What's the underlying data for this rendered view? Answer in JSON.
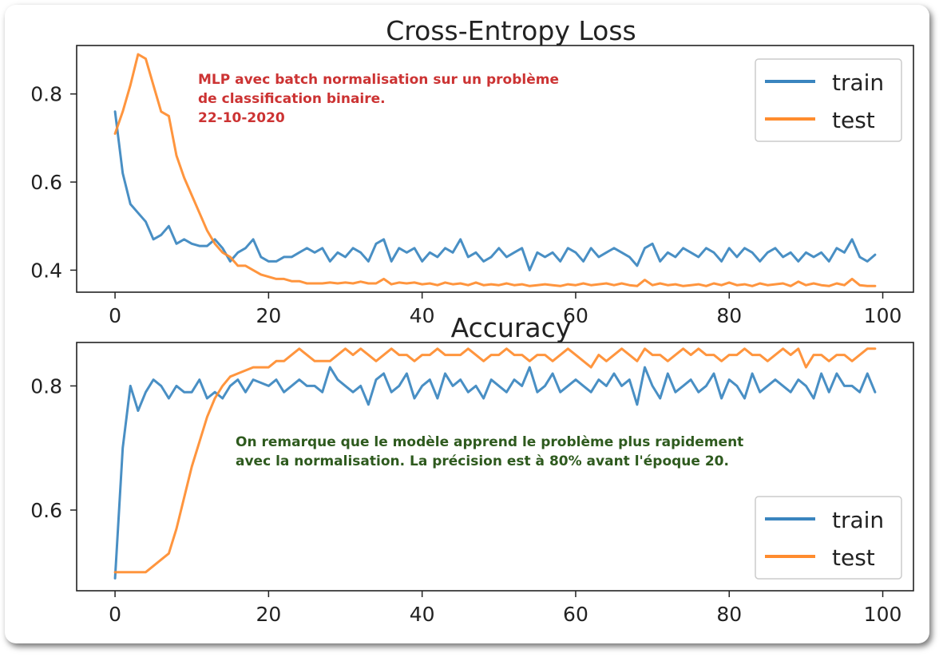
{
  "colors": {
    "train": "#3a85bf",
    "test": "#ff8c2e",
    "axis": "#222222"
  },
  "annotations": {
    "red": {
      "line1": "MLP avec batch normalisation sur un problème",
      "line2": "de classification binaire.",
      "line3": "22-10-2020",
      "color": "#cc3333"
    },
    "green": {
      "line1": "On remarque que le modèle apprend le problème plus rapidement",
      "line2": "avec la normalisation. La précision est à 80% avant l'époque 20.",
      "color": "#2e5a1e"
    }
  },
  "chart_data": [
    {
      "type": "line",
      "title": "Cross-Entropy Loss",
      "xlabel": "",
      "ylabel": "",
      "xlim": [
        -5,
        104
      ],
      "ylim": [
        0.35,
        0.91
      ],
      "xticks": [
        0,
        20,
        40,
        60,
        80,
        100
      ],
      "yticks": [
        0.4,
        0.6,
        0.8
      ],
      "legend": "top-right",
      "series": [
        {
          "name": "train",
          "color": "#3a85bf",
          "x": [
            0,
            1,
            2,
            3,
            4,
            5,
            6,
            7,
            8,
            9,
            10,
            11,
            12,
            13,
            14,
            15,
            16,
            17,
            18,
            19,
            20,
            21,
            22,
            23,
            24,
            25,
            26,
            27,
            28,
            29,
            30,
            31,
            32,
            33,
            34,
            35,
            36,
            37,
            38,
            39,
            40,
            41,
            42,
            43,
            44,
            45,
            46,
            47,
            48,
            49,
            50,
            51,
            52,
            53,
            54,
            55,
            56,
            57,
            58,
            59,
            60,
            61,
            62,
            63,
            64,
            65,
            66,
            67,
            68,
            69,
            70,
            71,
            72,
            73,
            74,
            75,
            76,
            77,
            78,
            79,
            80,
            81,
            82,
            83,
            84,
            85,
            86,
            87,
            88,
            89,
            90,
            91,
            92,
            93,
            94,
            95,
            96,
            97,
            98,
            99
          ],
          "values": [
            0.76,
            0.62,
            0.55,
            0.53,
            0.51,
            0.47,
            0.48,
            0.5,
            0.46,
            0.47,
            0.46,
            0.455,
            0.455,
            0.47,
            0.45,
            0.42,
            0.44,
            0.45,
            0.47,
            0.43,
            0.42,
            0.42,
            0.43,
            0.43,
            0.44,
            0.45,
            0.44,
            0.45,
            0.42,
            0.44,
            0.43,
            0.45,
            0.44,
            0.42,
            0.46,
            0.47,
            0.42,
            0.45,
            0.44,
            0.45,
            0.42,
            0.44,
            0.43,
            0.45,
            0.44,
            0.47,
            0.43,
            0.44,
            0.42,
            0.43,
            0.45,
            0.43,
            0.44,
            0.45,
            0.4,
            0.44,
            0.43,
            0.44,
            0.42,
            0.45,
            0.44,
            0.42,
            0.45,
            0.43,
            0.44,
            0.45,
            0.44,
            0.43,
            0.41,
            0.45,
            0.46,
            0.42,
            0.44,
            0.43,
            0.45,
            0.44,
            0.43,
            0.45,
            0.44,
            0.42,
            0.45,
            0.43,
            0.45,
            0.44,
            0.42,
            0.44,
            0.45,
            0.43,
            0.44,
            0.42,
            0.44,
            0.43,
            0.44,
            0.42,
            0.45,
            0.44,
            0.47,
            0.43,
            0.42,
            0.435
          ]
        },
        {
          "name": "test",
          "color": "#ff8c2e",
          "x": [
            0,
            1,
            2,
            3,
            4,
            5,
            6,
            7,
            8,
            9,
            10,
            11,
            12,
            13,
            14,
            15,
            16,
            17,
            18,
            19,
            20,
            21,
            22,
            23,
            24,
            25,
            26,
            27,
            28,
            29,
            30,
            31,
            32,
            33,
            34,
            35,
            36,
            37,
            38,
            39,
            40,
            41,
            42,
            43,
            44,
            45,
            46,
            47,
            48,
            49,
            50,
            51,
            52,
            53,
            54,
            55,
            56,
            57,
            58,
            59,
            60,
            61,
            62,
            63,
            64,
            65,
            66,
            67,
            68,
            69,
            70,
            71,
            72,
            73,
            74,
            75,
            76,
            77,
            78,
            79,
            80,
            81,
            82,
            83,
            84,
            85,
            86,
            87,
            88,
            89,
            90,
            91,
            92,
            93,
            94,
            95,
            96,
            97,
            98,
            99
          ],
          "values": [
            0.71,
            0.76,
            0.82,
            0.89,
            0.88,
            0.82,
            0.76,
            0.75,
            0.66,
            0.61,
            0.57,
            0.53,
            0.49,
            0.46,
            0.44,
            0.43,
            0.41,
            0.41,
            0.4,
            0.39,
            0.385,
            0.38,
            0.38,
            0.375,
            0.375,
            0.37,
            0.37,
            0.37,
            0.372,
            0.37,
            0.372,
            0.37,
            0.374,
            0.37,
            0.37,
            0.38,
            0.368,
            0.372,
            0.37,
            0.372,
            0.368,
            0.37,
            0.366,
            0.372,
            0.368,
            0.37,
            0.366,
            0.372,
            0.366,
            0.368,
            0.366,
            0.37,
            0.366,
            0.368,
            0.364,
            0.366,
            0.368,
            0.366,
            0.364,
            0.368,
            0.366,
            0.37,
            0.366,
            0.368,
            0.37,
            0.366,
            0.37,
            0.366,
            0.364,
            0.378,
            0.366,
            0.37,
            0.366,
            0.368,
            0.364,
            0.366,
            0.368,
            0.364,
            0.37,
            0.366,
            0.372,
            0.366,
            0.368,
            0.364,
            0.37,
            0.366,
            0.368,
            0.37,
            0.364,
            0.374,
            0.366,
            0.37,
            0.366,
            0.364,
            0.37,
            0.366,
            0.38,
            0.366,
            0.364,
            0.364
          ]
        }
      ]
    },
    {
      "type": "line",
      "title": "Accuracy",
      "xlabel": "",
      "ylabel": "",
      "xlim": [
        -5,
        104
      ],
      "ylim": [
        0.47,
        0.87
      ],
      "xticks": [
        0,
        20,
        40,
        60,
        80,
        100
      ],
      "yticks": [
        0.6,
        0.8
      ],
      "legend": "lower-right",
      "series": [
        {
          "name": "train",
          "color": "#3a85bf",
          "x": [
            0,
            1,
            2,
            3,
            4,
            5,
            6,
            7,
            8,
            9,
            10,
            11,
            12,
            13,
            14,
            15,
            16,
            17,
            18,
            19,
            20,
            21,
            22,
            23,
            24,
            25,
            26,
            27,
            28,
            29,
            30,
            31,
            32,
            33,
            34,
            35,
            36,
            37,
            38,
            39,
            40,
            41,
            42,
            43,
            44,
            45,
            46,
            47,
            48,
            49,
            50,
            51,
            52,
            53,
            54,
            55,
            56,
            57,
            58,
            59,
            60,
            61,
            62,
            63,
            64,
            65,
            66,
            67,
            68,
            69,
            70,
            71,
            72,
            73,
            74,
            75,
            76,
            77,
            78,
            79,
            80,
            81,
            82,
            83,
            84,
            85,
            86,
            87,
            88,
            89,
            90,
            91,
            92,
            93,
            94,
            95,
            96,
            97,
            98,
            99
          ],
          "values": [
            0.49,
            0.7,
            0.8,
            0.76,
            0.79,
            0.81,
            0.8,
            0.78,
            0.8,
            0.79,
            0.79,
            0.81,
            0.78,
            0.79,
            0.78,
            0.8,
            0.81,
            0.79,
            0.81,
            0.805,
            0.8,
            0.81,
            0.79,
            0.8,
            0.81,
            0.8,
            0.8,
            0.79,
            0.83,
            0.81,
            0.8,
            0.79,
            0.8,
            0.77,
            0.81,
            0.82,
            0.79,
            0.8,
            0.82,
            0.78,
            0.8,
            0.81,
            0.78,
            0.82,
            0.8,
            0.81,
            0.79,
            0.8,
            0.78,
            0.81,
            0.8,
            0.79,
            0.81,
            0.8,
            0.83,
            0.79,
            0.8,
            0.82,
            0.79,
            0.8,
            0.81,
            0.8,
            0.79,
            0.81,
            0.8,
            0.82,
            0.8,
            0.81,
            0.77,
            0.83,
            0.8,
            0.78,
            0.82,
            0.79,
            0.8,
            0.81,
            0.79,
            0.8,
            0.82,
            0.78,
            0.81,
            0.8,
            0.78,
            0.82,
            0.79,
            0.8,
            0.81,
            0.8,
            0.79,
            0.81,
            0.8,
            0.78,
            0.82,
            0.79,
            0.82,
            0.8,
            0.8,
            0.79,
            0.82,
            0.79
          ]
        },
        {
          "name": "test",
          "color": "#ff8c2e",
          "x": [
            0,
            1,
            2,
            3,
            4,
            5,
            6,
            7,
            8,
            9,
            10,
            11,
            12,
            13,
            14,
            15,
            16,
            17,
            18,
            19,
            20,
            21,
            22,
            23,
            24,
            25,
            26,
            27,
            28,
            29,
            30,
            31,
            32,
            33,
            34,
            35,
            36,
            37,
            38,
            39,
            40,
            41,
            42,
            43,
            44,
            45,
            46,
            47,
            48,
            49,
            50,
            51,
            52,
            53,
            54,
            55,
            56,
            57,
            58,
            59,
            60,
            61,
            62,
            63,
            64,
            65,
            66,
            67,
            68,
            69,
            70,
            71,
            72,
            73,
            74,
            75,
            76,
            77,
            78,
            79,
            80,
            81,
            82,
            83,
            84,
            85,
            86,
            87,
            88,
            89,
            90,
            91,
            92,
            93,
            94,
            95,
            96,
            97,
            98,
            99
          ],
          "values": [
            0.5,
            0.5,
            0.5,
            0.5,
            0.5,
            0.51,
            0.52,
            0.53,
            0.57,
            0.62,
            0.67,
            0.71,
            0.75,
            0.78,
            0.8,
            0.815,
            0.82,
            0.825,
            0.83,
            0.83,
            0.83,
            0.84,
            0.84,
            0.85,
            0.86,
            0.85,
            0.84,
            0.84,
            0.84,
            0.85,
            0.86,
            0.85,
            0.86,
            0.85,
            0.84,
            0.85,
            0.86,
            0.85,
            0.85,
            0.84,
            0.85,
            0.85,
            0.86,
            0.85,
            0.85,
            0.85,
            0.86,
            0.85,
            0.84,
            0.85,
            0.85,
            0.86,
            0.85,
            0.85,
            0.84,
            0.85,
            0.85,
            0.84,
            0.85,
            0.86,
            0.85,
            0.84,
            0.83,
            0.85,
            0.84,
            0.85,
            0.86,
            0.85,
            0.84,
            0.86,
            0.85,
            0.85,
            0.84,
            0.85,
            0.86,
            0.85,
            0.86,
            0.85,
            0.85,
            0.84,
            0.85,
            0.85,
            0.86,
            0.85,
            0.85,
            0.84,
            0.85,
            0.86,
            0.85,
            0.86,
            0.83,
            0.85,
            0.85,
            0.84,
            0.85,
            0.85,
            0.84,
            0.85,
            0.86,
            0.86
          ]
        }
      ]
    }
  ]
}
